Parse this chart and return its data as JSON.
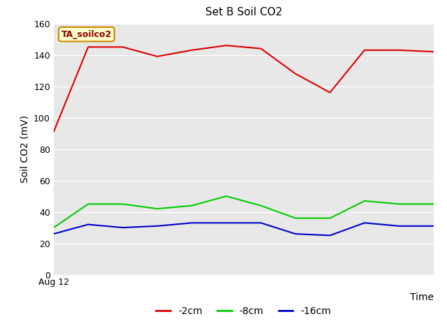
{
  "title": "Set B Soil CO2",
  "ylabel": "Soil CO2 (mV)",
  "xlabel": "Time",
  "xticklabel": "Aug 12",
  "ylim": [
    0,
    160
  ],
  "yticks": [
    0,
    20,
    40,
    60,
    80,
    100,
    120,
    140,
    160
  ],
  "annotation_text": "TA_soilco2",
  "annotation_bg": "#ffffcc",
  "annotation_border": "#cc8800",
  "series_2cm": {
    "color": "#dd0000",
    "label": "-2cm",
    "values": [
      91,
      145,
      145,
      139,
      143,
      146,
      144,
      128,
      116,
      143,
      143,
      142
    ]
  },
  "series_8cm": {
    "color": "#00cc00",
    "label": "-8cm",
    "values": [
      30,
      45,
      45,
      42,
      44,
      50,
      44,
      36,
      36,
      47,
      45,
      45
    ]
  },
  "series_16cm": {
    "color": "#0000cc",
    "label": "-16cm",
    "values": [
      26,
      32,
      30,
      31,
      33,
      33,
      33,
      26,
      25,
      33,
      31,
      31
    ]
  },
  "bg_color": "#e8e8e8",
  "fig_bg": "#ffffff",
  "grid_color": "#ffffff",
  "title_fontsize": 11,
  "axis_fontsize": 10,
  "tick_fontsize": 9
}
